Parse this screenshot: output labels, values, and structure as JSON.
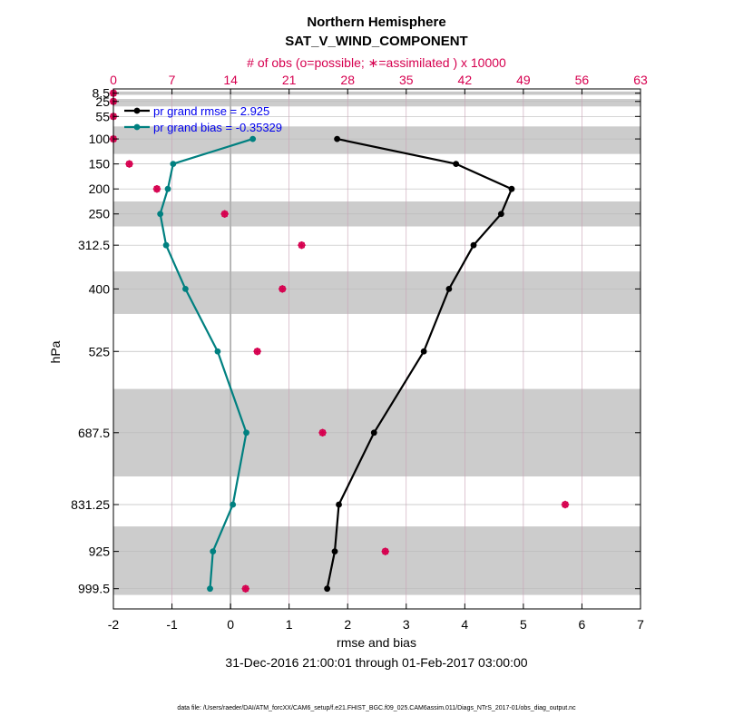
{
  "chart_data": {
    "type": "line",
    "title": "Northern Hemisphere",
    "subtitle": "SAT_V_WIND_COMPONENT",
    "top_axis_label": "# of obs (o=possible; ∗=assimilated ) x 10000",
    "top_ticks": [
      "0",
      "7",
      "14",
      "21",
      "28",
      "35",
      "42",
      "49",
      "56",
      "63"
    ],
    "top_xlim": [
      0,
      63
    ],
    "xlabel": "rmse and bias",
    "ylabel": "hPa",
    "xlim": [
      -2,
      7
    ],
    "x_ticks": [
      "-2",
      "-1",
      "0",
      "1",
      "2",
      "3",
      "4",
      "5",
      "6",
      "7"
    ],
    "ylim": [
      1040,
      0
    ],
    "levels": [
      8.5,
      25,
      55,
      100,
      150,
      200,
      250,
      312.5,
      400,
      525,
      687.5,
      831.25,
      925,
      999.5
    ],
    "level_labels": [
      "8.5",
      "25",
      "55",
      "100",
      "150",
      "200",
      "250",
      "312.5",
      "400",
      "525",
      "687.5",
      "831.25",
      "925",
      "999.5"
    ],
    "shaded_bands": [
      [
        5,
        12
      ],
      [
        20,
        35
      ],
      [
        75,
        130
      ],
      [
        225,
        275
      ],
      [
        365,
        450
      ],
      [
        600,
        775
      ],
      [
        875,
        1012
      ]
    ],
    "series": [
      {
        "name": "pr grand rmse = 2.925",
        "color": "#000000",
        "points": [
          {
            "level": 100,
            "value": 1.82
          },
          {
            "level": 150,
            "value": 3.85
          },
          {
            "level": 200,
            "value": 4.8
          },
          {
            "level": 250,
            "value": 4.62
          },
          {
            "level": 312.5,
            "value": 4.15
          },
          {
            "level": 400,
            "value": 3.73
          },
          {
            "level": 525,
            "value": 3.3
          },
          {
            "level": 687.5,
            "value": 2.45
          },
          {
            "level": 831.25,
            "value": 1.85
          },
          {
            "level": 925,
            "value": 1.78
          },
          {
            "level": 999.5,
            "value": 1.65
          }
        ]
      },
      {
        "name": "pr grand bias = -0.35329",
        "color": "#008080",
        "points": [
          {
            "level": 100,
            "value": 0.38
          },
          {
            "level": 150,
            "value": -0.98
          },
          {
            "level": 200,
            "value": -1.07
          },
          {
            "level": 250,
            "value": -1.2
          },
          {
            "level": 312.5,
            "value": -1.1
          },
          {
            "level": 400,
            "value": -0.77
          },
          {
            "level": 525,
            "value": -0.22
          },
          {
            "level": 687.5,
            "value": 0.27
          },
          {
            "level": 831.25,
            "value": 0.04
          },
          {
            "level": 925,
            "value": -0.3
          },
          {
            "level": 999.5,
            "value": -0.35
          }
        ]
      }
    ],
    "obs_counts_x10000": [
      {
        "level": 8.5,
        "possible": 0,
        "assimilated": 0
      },
      {
        "level": 25,
        "possible": 0,
        "assimilated": 0
      },
      {
        "level": 55,
        "possible": 0,
        "assimilated": 0
      },
      {
        "level": 100,
        "possible": 0,
        "assimilated": 0
      },
      {
        "level": 150,
        "possible": 1.9,
        "assimilated": 1.9
      },
      {
        "level": 200,
        "possible": 5.2,
        "assimilated": 5.2
      },
      {
        "level": 250,
        "possible": 13.3,
        "assimilated": 13.3
      },
      {
        "level": 312.5,
        "possible": 22.5,
        "assimilated": 22.5
      },
      {
        "level": 400,
        "possible": 20.2,
        "assimilated": 20.2
      },
      {
        "level": 525,
        "possible": 17.2,
        "assimilated": 17.2
      },
      {
        "level": 687.5,
        "possible": 25,
        "assimilated": 25
      },
      {
        "level": 831.25,
        "possible": 54,
        "assimilated": 54
      },
      {
        "level": 925,
        "possible": 32.5,
        "assimilated": 32.5
      },
      {
        "level": 999.5,
        "possible": 15.8,
        "assimilated": 15.8
      }
    ],
    "date_range": "31-Dec-2016 21:00:01 through 01-Feb-2017 03:00:00",
    "footnote": "data file: /Users/raeder/DAI/ATM_forcXX/CAM6_setup/f.e21.FHIST_BGC.f09_025.CAM6assim.011/Diags_NTrS_2017-01/obs_diag_output.nc",
    "colors": {
      "count_marker": "#d6004f",
      "grid": "#c8a0b4",
      "band": "#cccccc",
      "zero_line": "#b0b0b0",
      "legend_text": "#0000ee"
    }
  }
}
